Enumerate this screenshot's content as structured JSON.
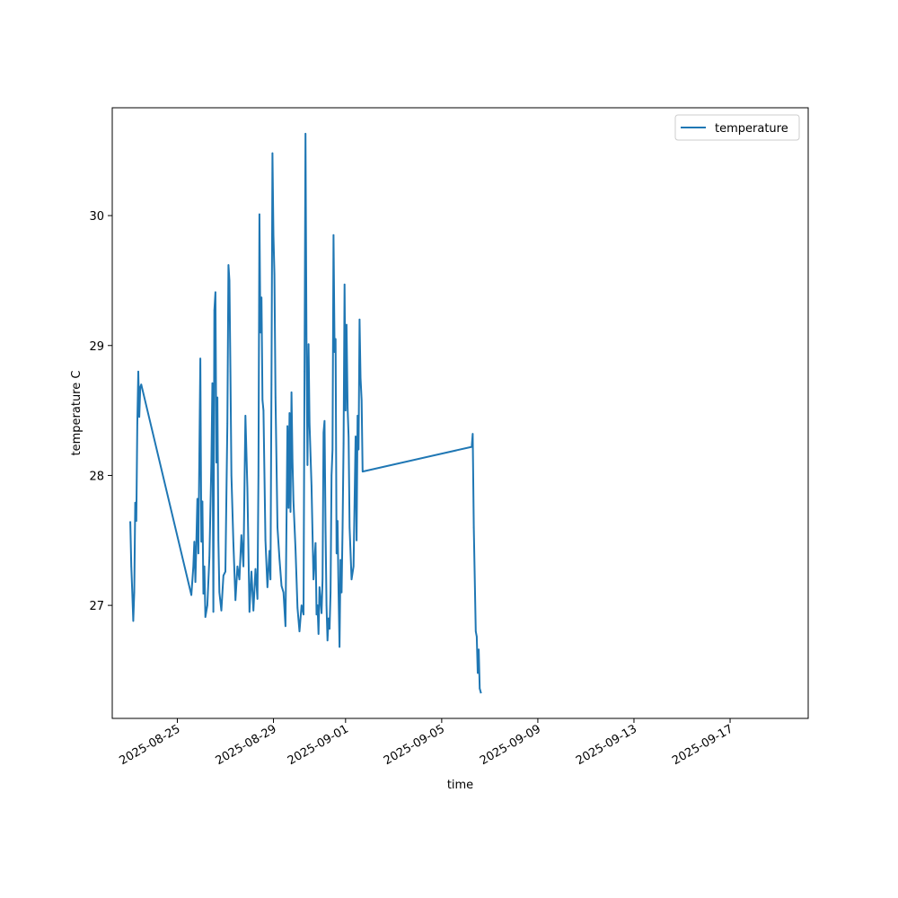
{
  "chart_data": {
    "type": "line",
    "title": "",
    "xlabel": "time",
    "ylabel": "temperature C",
    "x_ticks": [
      "2025-08-25",
      "2025-08-29",
      "2025-09-01",
      "2025-09-05",
      "2025-09-09",
      "2025-09-13",
      "2025-09-17"
    ],
    "y_ticks": [
      "27",
      "28",
      "29",
      "30"
    ],
    "xlim": [
      "2025-08-22T07:00",
      "2025-09-20T06:00"
    ],
    "ylim": [
      26.13,
      30.83
    ],
    "grid": false,
    "legend": {
      "placement": "top-right",
      "entries": [
        "temperature"
      ]
    },
    "colors": {
      "series": "#1f77b4"
    },
    "series": [
      {
        "name": "temperature",
        "points": [
          [
            "2025-08-23T01:00",
            27.64
          ],
          [
            "2025-08-23T02:00",
            27.3
          ],
          [
            "2025-08-23T03:00",
            27.1
          ],
          [
            "2025-08-23T04:00",
            26.88
          ],
          [
            "2025-08-23T05:00",
            27.1
          ],
          [
            "2025-08-23T06:00",
            27.79
          ],
          [
            "2025-08-23T07:00",
            27.65
          ],
          [
            "2025-08-23T08:00",
            28.4
          ],
          [
            "2025-08-23T09:00",
            28.8
          ],
          [
            "2025-08-23T10:00",
            28.45
          ],
          [
            "2025-08-23T11:00",
            28.68
          ],
          [
            "2025-08-23T12:00",
            28.7
          ],
          [
            "2025-08-25T14:00",
            27.08
          ],
          [
            "2025-08-25T16:00",
            27.3
          ],
          [
            "2025-08-25T17:00",
            27.49
          ],
          [
            "2025-08-25T18:00",
            27.18
          ],
          [
            "2025-08-25T20:00",
            27.82
          ],
          [
            "2025-08-25T21:00",
            27.4
          ],
          [
            "2025-08-25T23:00",
            28.9
          ],
          [
            "2025-08-26T00:00",
            27.49
          ],
          [
            "2025-08-26T01:00",
            27.8
          ],
          [
            "2025-08-26T02:00",
            27.09
          ],
          [
            "2025-08-26T03:00",
            27.3
          ],
          [
            "2025-08-26T04:00",
            26.91
          ],
          [
            "2025-08-26T06:00",
            27.0
          ],
          [
            "2025-08-26T08:00",
            27.37
          ],
          [
            "2025-08-26T10:00",
            28.1
          ],
          [
            "2025-08-26T11:00",
            28.71
          ],
          [
            "2025-08-26T12:00",
            26.95
          ],
          [
            "2025-08-26T13:00",
            29.27
          ],
          [
            "2025-08-26T14:00",
            29.41
          ],
          [
            "2025-08-26T15:00",
            28.1
          ],
          [
            "2025-08-26T16:00",
            28.6
          ],
          [
            "2025-08-26T17:00",
            27.5
          ],
          [
            "2025-08-26T18:00",
            27.1
          ],
          [
            "2025-08-26T20:00",
            26.96
          ],
          [
            "2025-08-26T22:00",
            27.23
          ],
          [
            "2025-08-27T00:00",
            27.26
          ],
          [
            "2025-08-27T02:00",
            28.4
          ],
          [
            "2025-08-27T03:00",
            29.62
          ],
          [
            "2025-08-27T04:00",
            29.5
          ],
          [
            "2025-08-27T05:00",
            28.8
          ],
          [
            "2025-08-27T06:00",
            28.0
          ],
          [
            "2025-08-27T08:00",
            27.48
          ],
          [
            "2025-08-27T10:00",
            27.04
          ],
          [
            "2025-08-27T12:00",
            27.3
          ],
          [
            "2025-08-27T14:00",
            27.2
          ],
          [
            "2025-08-27T16:00",
            27.54
          ],
          [
            "2025-08-27T18:00",
            27.3
          ],
          [
            "2025-08-27T20:00",
            28.46
          ],
          [
            "2025-08-27T22:00",
            27.9
          ],
          [
            "2025-08-28T00:00",
            26.95
          ],
          [
            "2025-08-28T02:00",
            27.26
          ],
          [
            "2025-08-28T04:00",
            26.96
          ],
          [
            "2025-08-28T06:00",
            27.28
          ],
          [
            "2025-08-28T08:00",
            27.05
          ],
          [
            "2025-08-28T09:00",
            28.0
          ],
          [
            "2025-08-28T10:00",
            30.01
          ],
          [
            "2025-08-28T11:00",
            29.1
          ],
          [
            "2025-08-28T12:00",
            29.37
          ],
          [
            "2025-08-28T13:00",
            28.58
          ],
          [
            "2025-08-28T14:00",
            28.5
          ],
          [
            "2025-08-28T16:00",
            27.5
          ],
          [
            "2025-08-28T18:00",
            27.14
          ],
          [
            "2025-08-28T20:00",
            27.42
          ],
          [
            "2025-08-28T21:00",
            27.2
          ],
          [
            "2025-08-28T22:00",
            28.7
          ],
          [
            "2025-08-28T23:00",
            30.48
          ],
          [
            "2025-08-29T00:00",
            29.85
          ],
          [
            "2025-08-29T01:00",
            29.55
          ],
          [
            "2025-08-29T02:00",
            28.6
          ],
          [
            "2025-08-29T04:00",
            27.6
          ],
          [
            "2025-08-29T06:00",
            27.36
          ],
          [
            "2025-08-29T08:00",
            27.15
          ],
          [
            "2025-08-29T10:00",
            27.1
          ],
          [
            "2025-08-29T12:00",
            26.84
          ],
          [
            "2025-08-29T14:00",
            28.38
          ],
          [
            "2025-08-29T15:00",
            27.75
          ],
          [
            "2025-08-29T16:00",
            28.48
          ],
          [
            "2025-08-29T17:00",
            27.72
          ],
          [
            "2025-08-29T18:00",
            28.64
          ],
          [
            "2025-08-29T19:00",
            28.12
          ],
          [
            "2025-08-29T20:00",
            27.8
          ],
          [
            "2025-08-29T22:00",
            27.43
          ],
          [
            "2025-08-30T00:00",
            26.98
          ],
          [
            "2025-08-30T02:00",
            26.8
          ],
          [
            "2025-08-30T04:00",
            27.0
          ],
          [
            "2025-08-30T06:00",
            26.93
          ],
          [
            "2025-08-30T07:00",
            28.8
          ],
          [
            "2025-08-30T08:00",
            30.63
          ],
          [
            "2025-08-30T09:00",
            29.05
          ],
          [
            "2025-08-30T10:00",
            28.08
          ],
          [
            "2025-08-30T11:00",
            29.01
          ],
          [
            "2025-08-30T12:00",
            28.4
          ],
          [
            "2025-08-30T14:00",
            27.92
          ],
          [
            "2025-08-30T16:00",
            27.2
          ],
          [
            "2025-08-30T18:00",
            27.48
          ],
          [
            "2025-08-30T19:00",
            26.93
          ],
          [
            "2025-08-30T20:00",
            27.0
          ],
          [
            "2025-08-30T21:00",
            26.78
          ],
          [
            "2025-08-30T22:00",
            27.14
          ],
          [
            "2025-08-31T00:00",
            26.94
          ],
          [
            "2025-08-31T01:00",
            27.2
          ],
          [
            "2025-08-31T02:00",
            28.33
          ],
          [
            "2025-08-31T03:00",
            28.42
          ],
          [
            "2025-08-31T04:00",
            27.6
          ],
          [
            "2025-08-31T05:00",
            27.0
          ],
          [
            "2025-08-31T06:00",
            26.73
          ],
          [
            "2025-08-31T07:00",
            26.9
          ],
          [
            "2025-08-31T08:00",
            26.82
          ],
          [
            "2025-08-31T09:00",
            27.1
          ],
          [
            "2025-08-31T10:00",
            28.0
          ],
          [
            "2025-08-31T11:00",
            28.2
          ],
          [
            "2025-08-31T12:00",
            29.85
          ],
          [
            "2025-08-31T13:00",
            28.95
          ],
          [
            "2025-08-31T14:00",
            29.05
          ],
          [
            "2025-08-31T15:00",
            27.4
          ],
          [
            "2025-08-31T16:00",
            27.65
          ],
          [
            "2025-08-31T17:00",
            27.1
          ],
          [
            "2025-08-31T18:00",
            26.68
          ],
          [
            "2025-08-31T19:00",
            27.35
          ],
          [
            "2025-08-31T20:00",
            27.1
          ],
          [
            "2025-08-31T21:00",
            27.6
          ],
          [
            "2025-08-31T22:00",
            28.25
          ],
          [
            "2025-08-31T23:00",
            29.47
          ],
          [
            "2025-09-01T00:00",
            28.5
          ],
          [
            "2025-09-01T01:00",
            29.16
          ],
          [
            "2025-09-01T02:00",
            28.52
          ],
          [
            "2025-09-01T03:00",
            28.3
          ],
          [
            "2025-09-01T04:00",
            27.6
          ],
          [
            "2025-09-01T06:00",
            27.2
          ],
          [
            "2025-09-01T08:00",
            27.3
          ],
          [
            "2025-09-01T10:00",
            28.3
          ],
          [
            "2025-09-01T11:00",
            27.5
          ],
          [
            "2025-09-01T12:00",
            28.46
          ],
          [
            "2025-09-01T13:00",
            28.2
          ],
          [
            "2025-09-01T14:00",
            29.2
          ],
          [
            "2025-09-01T15:00",
            28.75
          ],
          [
            "2025-09-01T16:00",
            28.58
          ],
          [
            "2025-09-01T17:00",
            28.03
          ],
          [
            "2025-09-06T06:00",
            28.22
          ],
          [
            "2025-09-06T07:00",
            28.32
          ],
          [
            "2025-09-06T08:00",
            27.6
          ],
          [
            "2025-09-06T10:00",
            26.8
          ],
          [
            "2025-09-06T11:00",
            26.76
          ],
          [
            "2025-09-06T12:00",
            26.48
          ],
          [
            "2025-09-06T13:00",
            26.66
          ],
          [
            "2025-09-06T14:00",
            26.36
          ],
          [
            "2025-09-06T15:00",
            26.33
          ]
        ]
      }
    ]
  }
}
